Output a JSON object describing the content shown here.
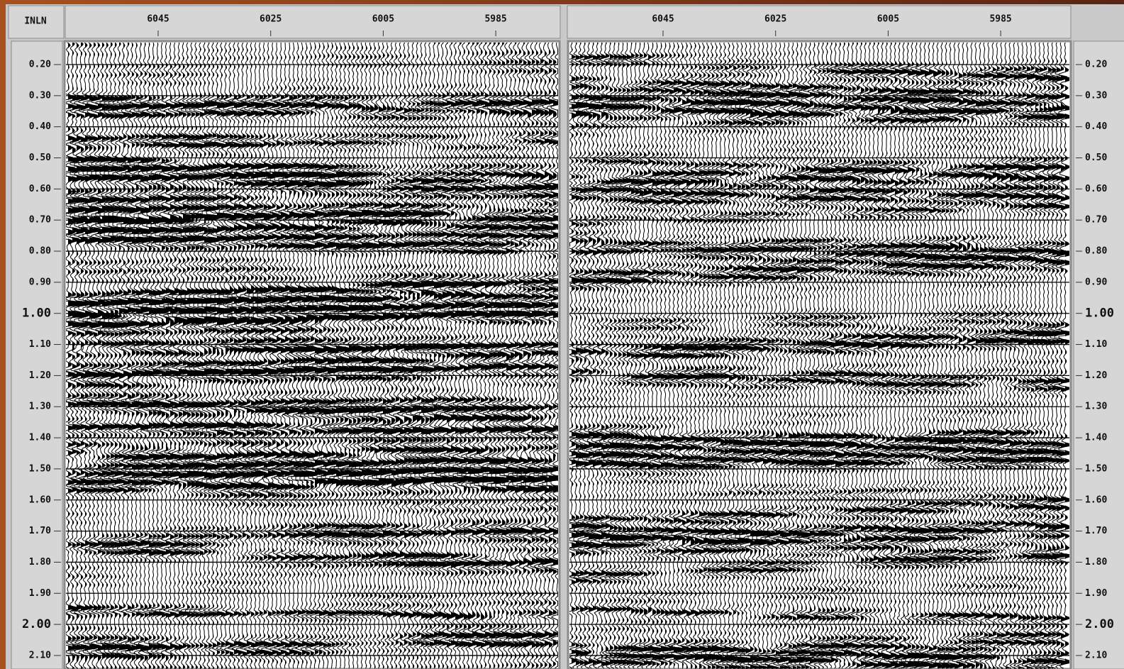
{
  "header": {
    "label": "INLN"
  },
  "panels": [
    {
      "x_labels": [
        "6045",
        "6025",
        "6005",
        "5985"
      ]
    },
    {
      "x_labels": [
        "6045",
        "6025",
        "6005",
        "5985"
      ]
    }
  ],
  "time_labels": [
    "0.20",
    "0.30",
    "0.40",
    "0.50",
    "0.60",
    "0.70",
    "0.80",
    "0.90",
    "1.00",
    "1.10",
    "1.20",
    "1.30",
    "1.40",
    "1.50",
    "1.60",
    "1.70",
    "1.80",
    "1.90",
    "2.00",
    "2.10"
  ]
}
